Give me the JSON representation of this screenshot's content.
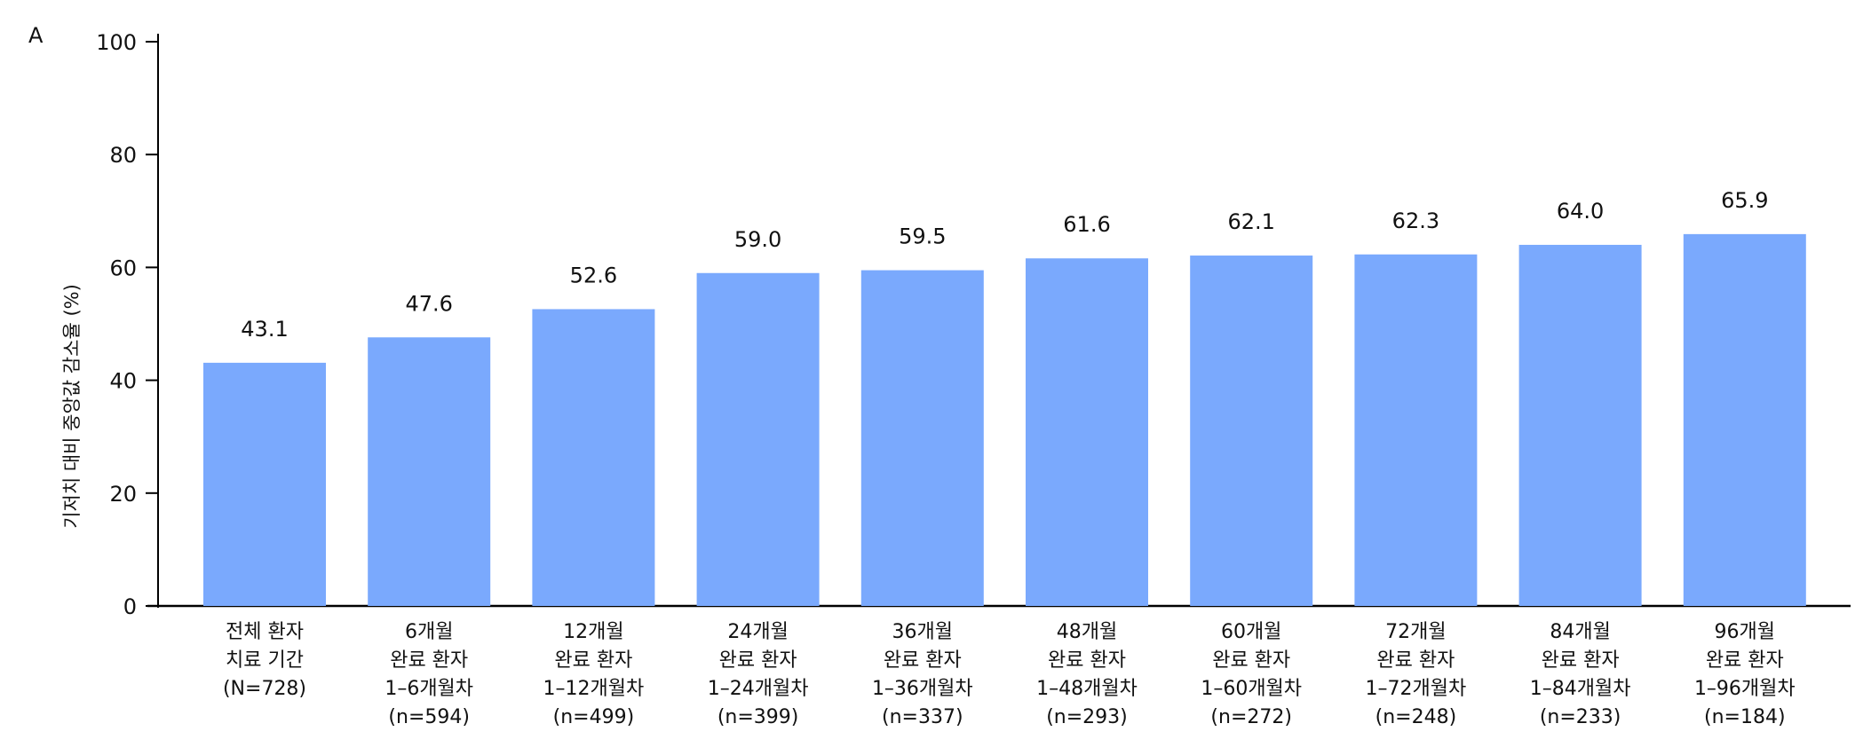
{
  "panel_label": "A",
  "chart_data": {
    "type": "bar",
    "title": "",
    "xlabel": "",
    "ylabel": "기저치 대비 중앙값 감소율 (%)",
    "ylim": [
      0,
      100
    ],
    "yticks": [
      0,
      20,
      40,
      60,
      80,
      100
    ],
    "grid": false,
    "bar_color": "#7aa9fd",
    "categories": [
      [
        "전체 환자",
        "치료 기간",
        "(N=728)"
      ],
      [
        "6개월",
        "완료 환자",
        "1–6개월차",
        "(n=594)"
      ],
      [
        "12개월",
        "완료 환자",
        "1–12개월차",
        "(n=499)"
      ],
      [
        "24개월",
        "완료 환자",
        "1–24개월차",
        "(n=399)"
      ],
      [
        "36개월",
        "완료 환자",
        "1–36개월차",
        "(n=337)"
      ],
      [
        "48개월",
        "완료 환자",
        "1–48개월차",
        "(n=293)"
      ],
      [
        "60개월",
        "완료 환자",
        "1–60개월차",
        "(n=272)"
      ],
      [
        "72개월",
        "완료 환자",
        "1–72개월차",
        "(n=248)"
      ],
      [
        "84개월",
        "완료 환자",
        "1–84개월차",
        "(n=233)"
      ],
      [
        "96개월",
        "완료 환자",
        "1–96개월차",
        "(n=184)"
      ]
    ],
    "values": [
      43.1,
      47.6,
      52.6,
      59.0,
      59.5,
      61.6,
      62.1,
      62.3,
      64.0,
      65.9
    ],
    "value_labels": [
      "43.1",
      "47.6",
      "52.6",
      "59.0",
      "59.5",
      "61.6",
      "62.1",
      "62.3",
      "64.0",
      "65.9"
    ]
  }
}
